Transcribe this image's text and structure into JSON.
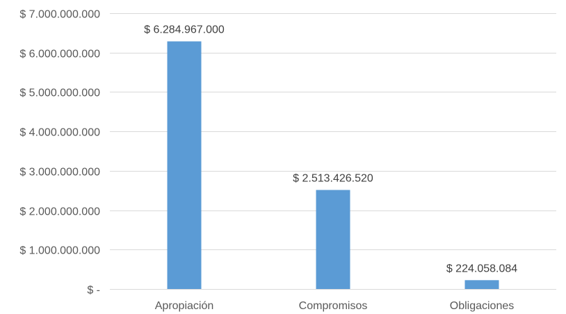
{
  "chart_data": {
    "type": "bar",
    "categories": [
      "Apropiación",
      "Compromisos",
      "Obligaciones"
    ],
    "values": [
      6284967000,
      2513426520,
      224058084
    ],
    "value_labels": [
      "$ 6.284.967.000",
      "$ 2.513.426.520",
      "$ 224.058.084"
    ],
    "ylim": [
      0,
      7000000000
    ],
    "y_ticks": [
      0,
      1000000000,
      2000000000,
      3000000000,
      4000000000,
      5000000000,
      6000000000,
      7000000000
    ],
    "y_tick_labels": [
      "$ -",
      "$ 1.000.000.000",
      "$ 2.000.000.000",
      "$ 3.000.000.000",
      "$ 4.000.000.000",
      "$ 5.000.000.000",
      "$ 6.000.000.000",
      "$ 7.000.000.000"
    ],
    "grid": true,
    "legend": "none",
    "colors": {
      "bar": "#5b9bd5",
      "grid": "#d9d9d9",
      "text": "#595959"
    }
  }
}
